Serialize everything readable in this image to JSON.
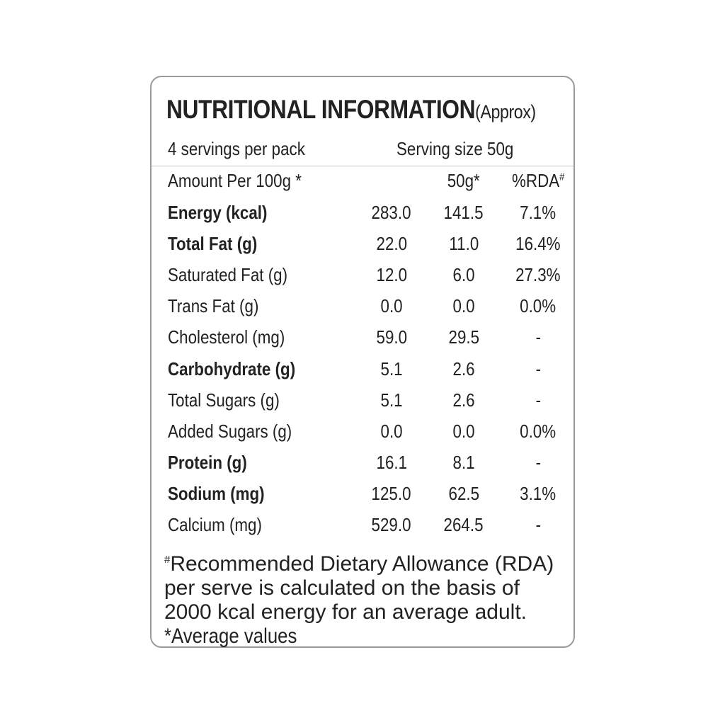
{
  "title": "NUTRITIONAL INFORMATION",
  "title_suffix": "(Approx)",
  "servings_per_pack": "4 servings per pack",
  "serving_size": "Serving size 50g",
  "header": {
    "label": "Amount Per 100g *",
    "col2": "50g*",
    "col3": "%RDA",
    "col3_sup": "#"
  },
  "rows": [
    {
      "label": "Energy (kcal)",
      "per100": "283.0",
      "per50": "141.5",
      "rda": "7.1%",
      "bold": true
    },
    {
      "label": "Total Fat (g)",
      "per100": "22.0",
      "per50": "11.0",
      "rda": "16.4%",
      "bold": true
    },
    {
      "label": "Saturated Fat (g)",
      "per100": "12.0",
      "per50": "6.0",
      "rda": "27.3%",
      "bold": false
    },
    {
      "label": "Trans Fat (g)",
      "per100": "0.0",
      "per50": "0.0",
      "rda": "0.0%",
      "bold": false
    },
    {
      "label": "Cholesterol (mg)",
      "per100": "59.0",
      "per50": "29.5",
      "rda": "-",
      "bold": false
    },
    {
      "label": "Carbohydrate (g)",
      "per100": "5.1",
      "per50": "2.6",
      "rda": "-",
      "bold": true
    },
    {
      "label": "Total Sugars (g)",
      "per100": "5.1",
      "per50": "2.6",
      "rda": "-",
      "bold": false
    },
    {
      "label": "Added Sugars (g)",
      "per100": "0.0",
      "per50": "0.0",
      "rda": "0.0%",
      "bold": false
    },
    {
      "label": "Protein (g)",
      "per100": "16.1",
      "per50": "8.1",
      "rda": "-",
      "bold": true
    },
    {
      "label": "Sodium (mg)",
      "per100": "125.0",
      "per50": "62.5",
      "rda": "3.1%",
      "bold": true
    },
    {
      "label": "Calcium (mg)",
      "per100": "529.0",
      "per50": "264.5",
      "rda": "-",
      "bold": false
    }
  ],
  "footnote": {
    "sup": "#",
    "line1": "Recommended Dietary Allowance (RDA)",
    "line2": "per serve is calculated on the basis of",
    "line3": "2000 kcal energy for an average adult.",
    "line4": "*Average values"
  }
}
